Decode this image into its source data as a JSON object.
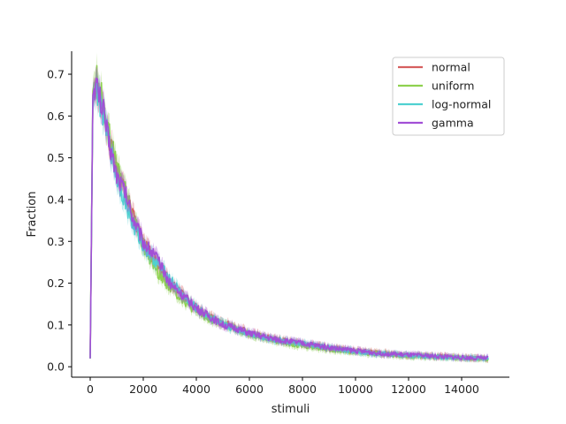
{
  "chart_data": {
    "type": "line",
    "title": "",
    "xlabel": "stimuli",
    "ylabel": "Fraction",
    "xlim": [
      -700,
      15800
    ],
    "ylim": [
      -0.025,
      0.755
    ],
    "xticks": [
      0,
      2000,
      4000,
      6000,
      8000,
      10000,
      12000,
      14000
    ],
    "yticks": [
      0.0,
      0.1,
      0.2,
      0.3,
      0.4,
      0.5,
      0.6,
      0.7
    ],
    "xtick_labels": [
      "0",
      "2000",
      "4000",
      "6000",
      "8000",
      "10000",
      "12000",
      "14000"
    ],
    "ytick_labels": [
      "0.0",
      "0.1",
      "0.2",
      "0.3",
      "0.4",
      "0.5",
      "0.6",
      "0.7"
    ],
    "grid": false,
    "legend_position": "top-right",
    "series": [
      {
        "name": "normal",
        "color": "#d65f5f",
        "x": [
          0,
          100,
          200,
          300,
          500,
          700,
          1000,
          1300,
          1600,
          2000,
          2500,
          3000,
          3500,
          4000,
          4500,
          5000,
          5500,
          6000,
          7000,
          8000,
          9000,
          10000,
          11000,
          12000,
          13000,
          14000,
          15000
        ],
        "y": [
          0.02,
          0.64,
          0.68,
          0.66,
          0.61,
          0.55,
          0.47,
          0.42,
          0.36,
          0.3,
          0.25,
          0.2,
          0.17,
          0.14,
          0.12,
          0.105,
          0.095,
          0.08,
          0.065,
          0.055,
          0.045,
          0.038,
          0.032,
          0.028,
          0.025,
          0.022,
          0.02
        ]
      },
      {
        "name": "uniform",
        "color": "#8fd14f",
        "x": [
          0,
          100,
          200,
          300,
          500,
          700,
          1000,
          1300,
          1600,
          2000,
          2500,
          3000,
          3500,
          4000,
          4500,
          5000,
          5500,
          6000,
          7000,
          8000,
          9000,
          10000,
          11000,
          12000,
          13000,
          14000,
          15000
        ],
        "y": [
          0.02,
          0.66,
          0.7,
          0.68,
          0.63,
          0.56,
          0.48,
          0.43,
          0.36,
          0.29,
          0.23,
          0.19,
          0.16,
          0.13,
          0.115,
          0.1,
          0.09,
          0.078,
          0.062,
          0.05,
          0.042,
          0.035,
          0.03,
          0.026,
          0.023,
          0.021,
          0.019
        ]
      },
      {
        "name": "log-normal",
        "color": "#4fd1d1",
        "x": [
          0,
          100,
          200,
          300,
          500,
          700,
          1000,
          1300,
          1600,
          2000,
          2500,
          3000,
          3500,
          4000,
          4500,
          5000,
          5500,
          6000,
          7000,
          8000,
          9000,
          10000,
          11000,
          12000,
          13000,
          14000,
          15000
        ],
        "y": [
          0.02,
          0.64,
          0.67,
          0.65,
          0.6,
          0.54,
          0.45,
          0.4,
          0.34,
          0.29,
          0.25,
          0.21,
          0.17,
          0.14,
          0.12,
          0.1,
          0.09,
          0.08,
          0.064,
          0.055,
          0.045,
          0.037,
          0.031,
          0.027,
          0.024,
          0.021,
          0.02
        ]
      },
      {
        "name": "gamma",
        "color": "#a24fd6",
        "x": [
          0,
          100,
          200,
          300,
          500,
          700,
          1000,
          1300,
          1600,
          2000,
          2500,
          3000,
          3500,
          4000,
          4500,
          5000,
          5500,
          6000,
          7000,
          8000,
          9000,
          10000,
          11000,
          12000,
          13000,
          14000,
          15000
        ],
        "y": [
          0.02,
          0.65,
          0.68,
          0.66,
          0.61,
          0.54,
          0.46,
          0.42,
          0.36,
          0.3,
          0.26,
          0.2,
          0.17,
          0.14,
          0.12,
          0.1,
          0.092,
          0.08,
          0.065,
          0.056,
          0.046,
          0.038,
          0.032,
          0.028,
          0.025,
          0.022,
          0.02
        ]
      }
    ]
  }
}
